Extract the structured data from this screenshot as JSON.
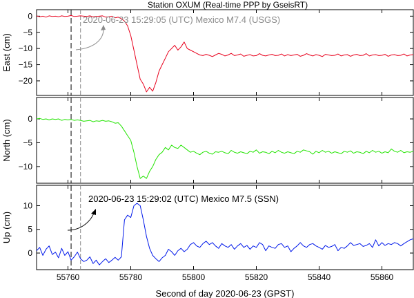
{
  "chart_data": [
    {
      "type": "line",
      "panel": "east",
      "title": "Station OXUM (Real-time PPP by GseisRT)",
      "ylabel": "East (cm)",
      "ylim": [
        -24.5,
        2
      ],
      "yticks": [
        0,
        -5,
        -10,
        -15,
        -20
      ],
      "xlim": [
        55750,
        55870
      ],
      "color": "#e8001c",
      "annotation": "2020-06-23 15:29:05 (UTC) Mexico M7.4 (USGS)",
      "x_start": 55750,
      "x_step": 1,
      "values": [
        0.1,
        -0.2,
        0,
        -0.3,
        0.1,
        -0.1,
        0,
        -0.2,
        0.1,
        -0.1,
        0,
        0.2,
        -0.1,
        0,
        0.1,
        0,
        -0.1,
        0.1,
        -0.2,
        -0.1,
        0,
        0.1,
        -0.3,
        -0.2,
        0,
        -0.5,
        -0.3,
        -0.8,
        -1.5,
        -3,
        -6,
        -10.5,
        -15,
        -19.5,
        -21,
        -23.4,
        -22,
        -23.2,
        -20.5,
        -17,
        -15,
        -13,
        -11,
        -10,
        -9,
        -10.5,
        -9.5,
        -8,
        -10,
        -10.5,
        -11,
        -11.5,
        -12,
        -12.2,
        -11.8,
        -12.1,
        -12.5,
        -12,
        -11.5,
        -11.8,
        -12.3,
        -12,
        -11.5,
        -12.2,
        -12,
        -11.7,
        -12.4,
        -12.1,
        -11.9,
        -12.3,
        -12.2,
        -11.6,
        -12.1,
        -12.3,
        -12,
        -11.8,
        -12.2,
        -12.1,
        -11.7,
        -12.3,
        -11.9,
        -12.2,
        -12,
        -11.8,
        -12.4,
        -12.1,
        -11.6,
        -12,
        -12.3,
        -11.9,
        -12.1,
        -12.5,
        -11.8,
        -12,
        -12.2,
        -12.1,
        -11.7,
        -12.3,
        -12,
        -11.9,
        -12.4,
        -12,
        -11.8,
        -12.2,
        -12.1,
        -11.6,
        -12.3,
        -12,
        -11.9,
        -12.2,
        -12.1,
        -11.8,
        -12.4,
        -12,
        -11.9,
        -12.2,
        -12.1,
        -11.7,
        -12.3,
        -12,
        -11.9
      ]
    },
    {
      "type": "line",
      "panel": "north",
      "ylabel": "North (cm)",
      "ylim": [
        -13.5,
        4.5
      ],
      "yticks": [
        0,
        -5,
        -10
      ],
      "xlim": [
        55750,
        55870
      ],
      "color": "#22e400",
      "x_start": 55750,
      "x_step": 1,
      "values": [
        0,
        0.1,
        -0.1,
        0,
        -0.2,
        0,
        -0.1,
        0,
        -0.3,
        -0.1,
        -0.2,
        -0.1,
        -0.3,
        -0.2,
        -0.3,
        -0.5,
        -0.4,
        -0.3,
        -0.6,
        -0.4,
        -0.5,
        -0.3,
        -0.5,
        -0.4,
        -0.6,
        -0.9,
        -0.8,
        -1.5,
        -2.5,
        -3.5,
        -4.5,
        -7,
        -10,
        -12.5,
        -12,
        -12.5,
        -11,
        -10,
        -8.5,
        -7.5,
        -7,
        -6,
        -6.5,
        -5.5,
        -6,
        -6.2,
        -5.5,
        -6,
        -6.5,
        -7,
        -6.8,
        -7.2,
        -7.5,
        -7,
        -6.8,
        -7.2,
        -7.4,
        -6.9,
        -7,
        -6.8,
        -7.1,
        -7.3,
        -6.6,
        -7,
        -7.2,
        -6.9,
        -7.1,
        -7.3,
        -6.8,
        -7,
        -6.5,
        -7.2,
        -6.9,
        -7,
        -7.3,
        -6.8,
        -7.1,
        -6.6,
        -7,
        -7.2,
        -6.9,
        -7.1,
        -7.3,
        -6.8,
        -7,
        -6.5,
        -6.7,
        -6.9,
        -7.4,
        -6.8,
        -7.1,
        -6.6,
        -7,
        -6.8,
        -7.2,
        -6.9,
        -7.1,
        -7.3,
        -6.8,
        -7,
        -6.7,
        -7.2,
        -6.9,
        -7,
        -7.3,
        -6.8,
        -7.1,
        -6.6,
        -7,
        -6.8,
        -7.2,
        -6.9,
        -7.1,
        -6.3,
        -6.8,
        -7,
        -6.6,
        -7.1,
        -6.9,
        -7,
        -6.8
      ]
    },
    {
      "type": "line",
      "panel": "up",
      "ylabel": "Up (cm)",
      "xlabel": "Second of day 2020-06-23 (GPST)",
      "ylim": [
        -3.5,
        14.3
      ],
      "yticks": [
        10,
        5,
        0
      ],
      "xlim": [
        55750,
        55870
      ],
      "xticks": [
        55760,
        55780,
        55800,
        55820,
        55840,
        55860
      ],
      "color": "#0018ea",
      "annotation": "2020-06-23 15:29:02 (UTC) Mexico M7.5 (SSN)",
      "x_start": 55750,
      "x_step": 1,
      "values": [
        0.5,
        1.2,
        -0.5,
        0.8,
        1.5,
        -0.3,
        0.2,
        -1,
        1,
        -0.5,
        0.3,
        -1.5,
        -0.8,
        0.2,
        -1.2,
        -1.8,
        -1.5,
        -0.8,
        -2.2,
        -1.5,
        -2.5,
        -1.8,
        -1.2,
        -2,
        -1.5,
        -0.9,
        -1.5,
        -0.8,
        7,
        8,
        7.5,
        10,
        10.5,
        10,
        7,
        3.5,
        1,
        -0.5,
        -1.2,
        -1.8,
        -1,
        -0.5,
        0.8,
        0.3,
        -0.5,
        0.5,
        1,
        0.3,
        0.8,
        1.8,
        2.2,
        1.5,
        1.2,
        2,
        2.5,
        1.8,
        2.2,
        1.5,
        1,
        2,
        1.5,
        1.2,
        1.8,
        0.8,
        1.5,
        2,
        1.2,
        1.6,
        0.8,
        1.5,
        1.2,
        2.2,
        1.8,
        0.5,
        1.5,
        1.2,
        1,
        1.8,
        2,
        1.2,
        1.5,
        0.3,
        1,
        1.5,
        2.2,
        1.5,
        1.2,
        1.8,
        2,
        1.5,
        1.2,
        0.8,
        1.6,
        1.2,
        1.4,
        1.8,
        0.5,
        1.2,
        1,
        1.5,
        2.2,
        1.6,
        1.8,
        2,
        1.4,
        1.6,
        2,
        1.2,
        2.8,
        1.5,
        2.2,
        1.6,
        2,
        1.8,
        2.2,
        2,
        1.5,
        2,
        2.4,
        2.8,
        3
      ]
    }
  ],
  "shared": {
    "vlines": [
      {
        "label": "ssn-event-line",
        "x": 55761,
        "color": "#000000",
        "dash": "8,4"
      },
      {
        "label": "usgs-event-line",
        "x": 55764,
        "color": "#8a8a8a",
        "dash": "6,3"
      }
    ]
  }
}
